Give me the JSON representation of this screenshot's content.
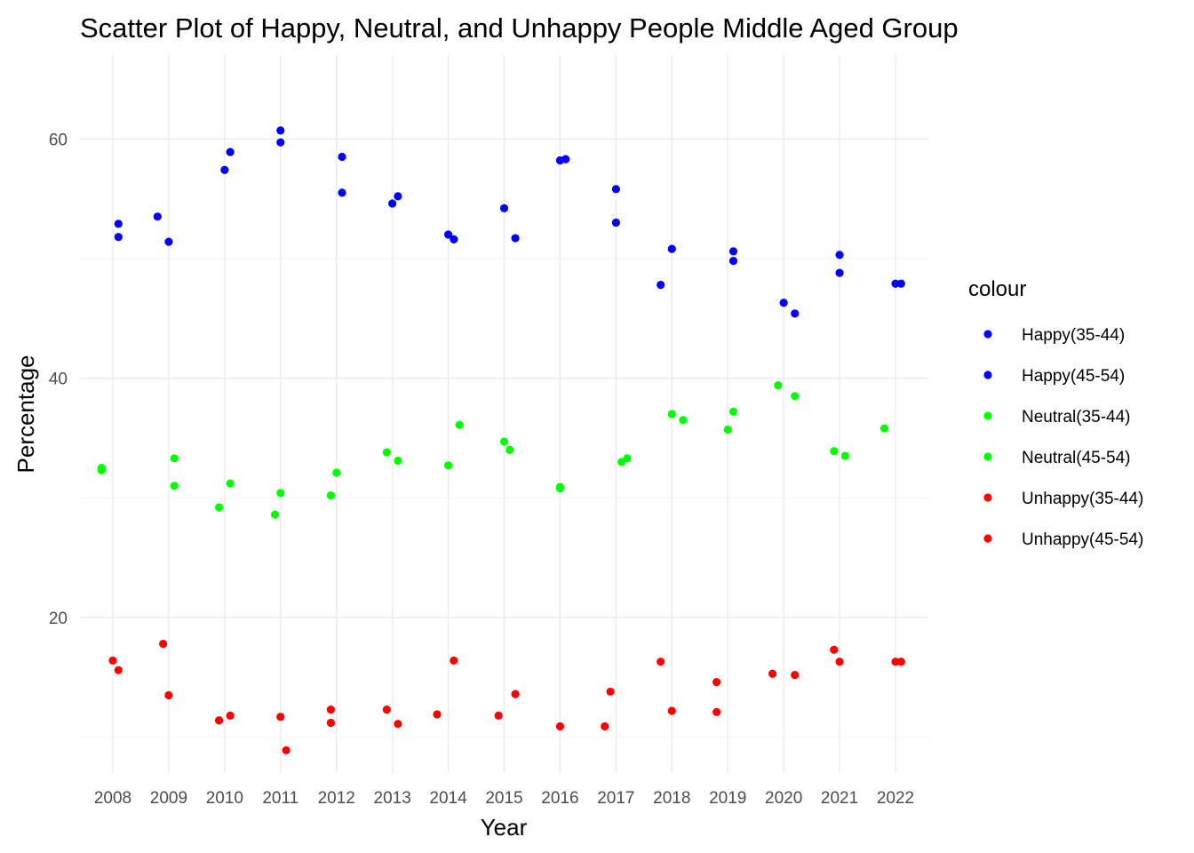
{
  "chart_data": {
    "type": "scatter",
    "title": "Scatter Plot of Happy, Neutral, and Unhappy People Middle Aged Group",
    "xlabel": "Year",
    "ylabel": "Percentage",
    "x_ticks": [
      "2008",
      "2009",
      "2010",
      "2011",
      "2012",
      "2013",
      "2014",
      "2015",
      "2016",
      "2017",
      "2018",
      "2019",
      "2020",
      "2021",
      "2022"
    ],
    "y_ticks": [
      20,
      40,
      60
    ],
    "ylim": [
      7,
      67
    ],
    "grid": true,
    "legend": {
      "title": "colour",
      "position": "right"
    },
    "series": [
      {
        "name": "Happy(35-44)",
        "color": "#0000ff",
        "points": [
          {
            "x": 2008.1,
            "y": 52.9
          },
          {
            "x": 2009.0,
            "y": 51.4
          },
          {
            "x": 2010.0,
            "y": 57.4
          },
          {
            "x": 2011.0,
            "y": 59.7
          },
          {
            "x": 2012.1,
            "y": 55.5
          },
          {
            "x": 2013.0,
            "y": 54.6
          },
          {
            "x": 2014.0,
            "y": 52.0
          },
          {
            "x": 2015.0,
            "y": 54.2
          },
          {
            "x": 2016.1,
            "y": 58.3
          },
          {
            "x": 2017.0,
            "y": 55.8
          },
          {
            "x": 2018.0,
            "y": 50.8
          },
          {
            "x": 2019.1,
            "y": 49.8
          },
          {
            "x": 2020.0,
            "y": 46.3
          },
          {
            "x": 2021.0,
            "y": 48.8
          },
          {
            "x": 2022.1,
            "y": 47.9
          }
        ]
      },
      {
        "name": "Happy(45-54)",
        "color": "#0000ff",
        "points": [
          {
            "x": 2008.1,
            "y": 51.8
          },
          {
            "x": 2008.8,
            "y": 53.5
          },
          {
            "x": 2010.1,
            "y": 58.9
          },
          {
            "x": 2011.0,
            "y": 60.7
          },
          {
            "x": 2012.1,
            "y": 58.5
          },
          {
            "x": 2013.1,
            "y": 55.2
          },
          {
            "x": 2014.1,
            "y": 51.6
          },
          {
            "x": 2015.2,
            "y": 51.7
          },
          {
            "x": 2016.0,
            "y": 58.2
          },
          {
            "x": 2017.0,
            "y": 53.0
          },
          {
            "x": 2017.8,
            "y": 47.8
          },
          {
            "x": 2019.1,
            "y": 50.6
          },
          {
            "x": 2020.2,
            "y": 45.4
          },
          {
            "x": 2021.0,
            "y": 50.3
          },
          {
            "x": 2022.0,
            "y": 47.9
          }
        ]
      },
      {
        "name": "Neutral(35-44)",
        "color": "#00ff00",
        "points": [
          {
            "x": 2007.8,
            "y": 32.5
          },
          {
            "x": 2009.1,
            "y": 33.3
          },
          {
            "x": 2009.9,
            "y": 29.2
          },
          {
            "x": 2011.0,
            "y": 30.4
          },
          {
            "x": 2012.0,
            "y": 32.1
          },
          {
            "x": 2012.9,
            "y": 33.8
          },
          {
            "x": 2014.0,
            "y": 32.7
          },
          {
            "x": 2015.0,
            "y": 34.7
          },
          {
            "x": 2016.0,
            "y": 30.9
          },
          {
            "x": 2017.1,
            "y": 33.0
          },
          {
            "x": 2018.0,
            "y": 37.0
          },
          {
            "x": 2019.1,
            "y": 37.2
          },
          {
            "x": 2019.9,
            "y": 39.4
          },
          {
            "x": 2020.9,
            "y": 33.9
          },
          {
            "x": 2021.8,
            "y": 35.8
          }
        ]
      },
      {
        "name": "Neutral(45-54)",
        "color": "#00ff00",
        "points": [
          {
            "x": 2007.8,
            "y": 32.3
          },
          {
            "x": 2009.1,
            "y": 31.0
          },
          {
            "x": 2010.1,
            "y": 31.2
          },
          {
            "x": 2010.9,
            "y": 28.6
          },
          {
            "x": 2011.9,
            "y": 30.2
          },
          {
            "x": 2013.1,
            "y": 33.1
          },
          {
            "x": 2014.2,
            "y": 36.1
          },
          {
            "x": 2015.1,
            "y": 34.0
          },
          {
            "x": 2016.0,
            "y": 30.8
          },
          {
            "x": 2017.2,
            "y": 33.3
          },
          {
            "x": 2018.2,
            "y": 36.5
          },
          {
            "x": 2019.0,
            "y": 35.7
          },
          {
            "x": 2020.2,
            "y": 38.5
          },
          {
            "x": 2021.1,
            "y": 33.5
          }
        ]
      },
      {
        "name": "Unhappy(35-44)",
        "color": "#ff0000",
        "points": [
          {
            "x": 2008.1,
            "y": 15.6
          },
          {
            "x": 2008.9,
            "y": 17.8
          },
          {
            "x": 2009.9,
            "y": 11.4
          },
          {
            "x": 2011.0,
            "y": 11.7
          },
          {
            "x": 2011.9,
            "y": 12.3
          },
          {
            "x": 2013.1,
            "y": 11.1
          },
          {
            "x": 2013.8,
            "y": 11.9
          },
          {
            "x": 2014.9,
            "y": 11.8
          },
          {
            "x": 2016.0,
            "y": 10.9
          },
          {
            "x": 2016.8,
            "y": 10.9
          },
          {
            "x": 2018.0,
            "y": 12.2
          },
          {
            "x": 2018.8,
            "y": 14.6
          },
          {
            "x": 2019.8,
            "y": 15.3
          },
          {
            "x": 2020.9,
            "y": 17.3
          },
          {
            "x": 2022.1,
            "y": 16.3
          }
        ]
      },
      {
        "name": "Unhappy(45-54)",
        "color": "#ff0000",
        "points": [
          {
            "x": 2008.0,
            "y": 16.4
          },
          {
            "x": 2009.0,
            "y": 13.5
          },
          {
            "x": 2010.1,
            "y": 11.8
          },
          {
            "x": 2011.1,
            "y": 8.9
          },
          {
            "x": 2011.9,
            "y": 11.2
          },
          {
            "x": 2012.9,
            "y": 12.3
          },
          {
            "x": 2014.1,
            "y": 16.4
          },
          {
            "x": 2015.2,
            "y": 13.6
          },
          {
            "x": 2016.9,
            "y": 13.8
          },
          {
            "x": 2017.8,
            "y": 16.3
          },
          {
            "x": 2018.8,
            "y": 12.1
          },
          {
            "x": 2020.2,
            "y": 15.2
          },
          {
            "x": 2021.0,
            "y": 16.3
          },
          {
            "x": 2022.0,
            "y": 16.3
          }
        ]
      }
    ]
  }
}
